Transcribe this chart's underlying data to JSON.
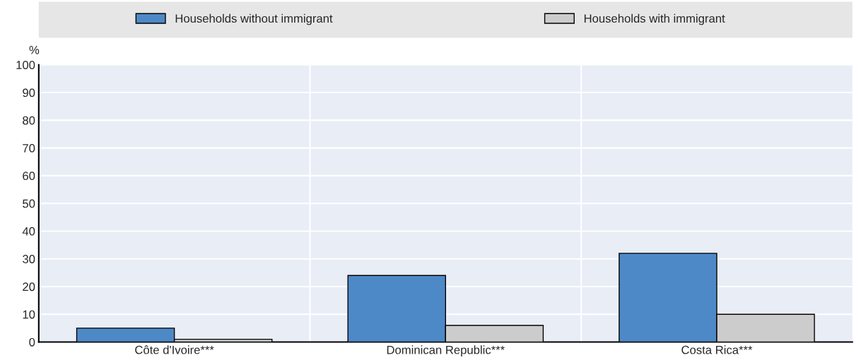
{
  "chart_data": {
    "type": "bar",
    "ylabel": "%",
    "categories": [
      "Côte d'Ivoire***",
      "Dominican Republic***",
      "Costa Rica***"
    ],
    "series": [
      {
        "name": "Households without immigrant",
        "color": "#4e89c7",
        "values": [
          5,
          24,
          32
        ]
      },
      {
        "name": "Households with immigrant",
        "color": "#cccccc",
        "values": [
          1,
          6,
          10
        ]
      }
    ],
    "ylim": [
      0,
      100
    ],
    "yticks": [
      0,
      10,
      20,
      30,
      40,
      50,
      60,
      70,
      80,
      90,
      100
    ],
    "grid": true,
    "legend": "top"
  }
}
